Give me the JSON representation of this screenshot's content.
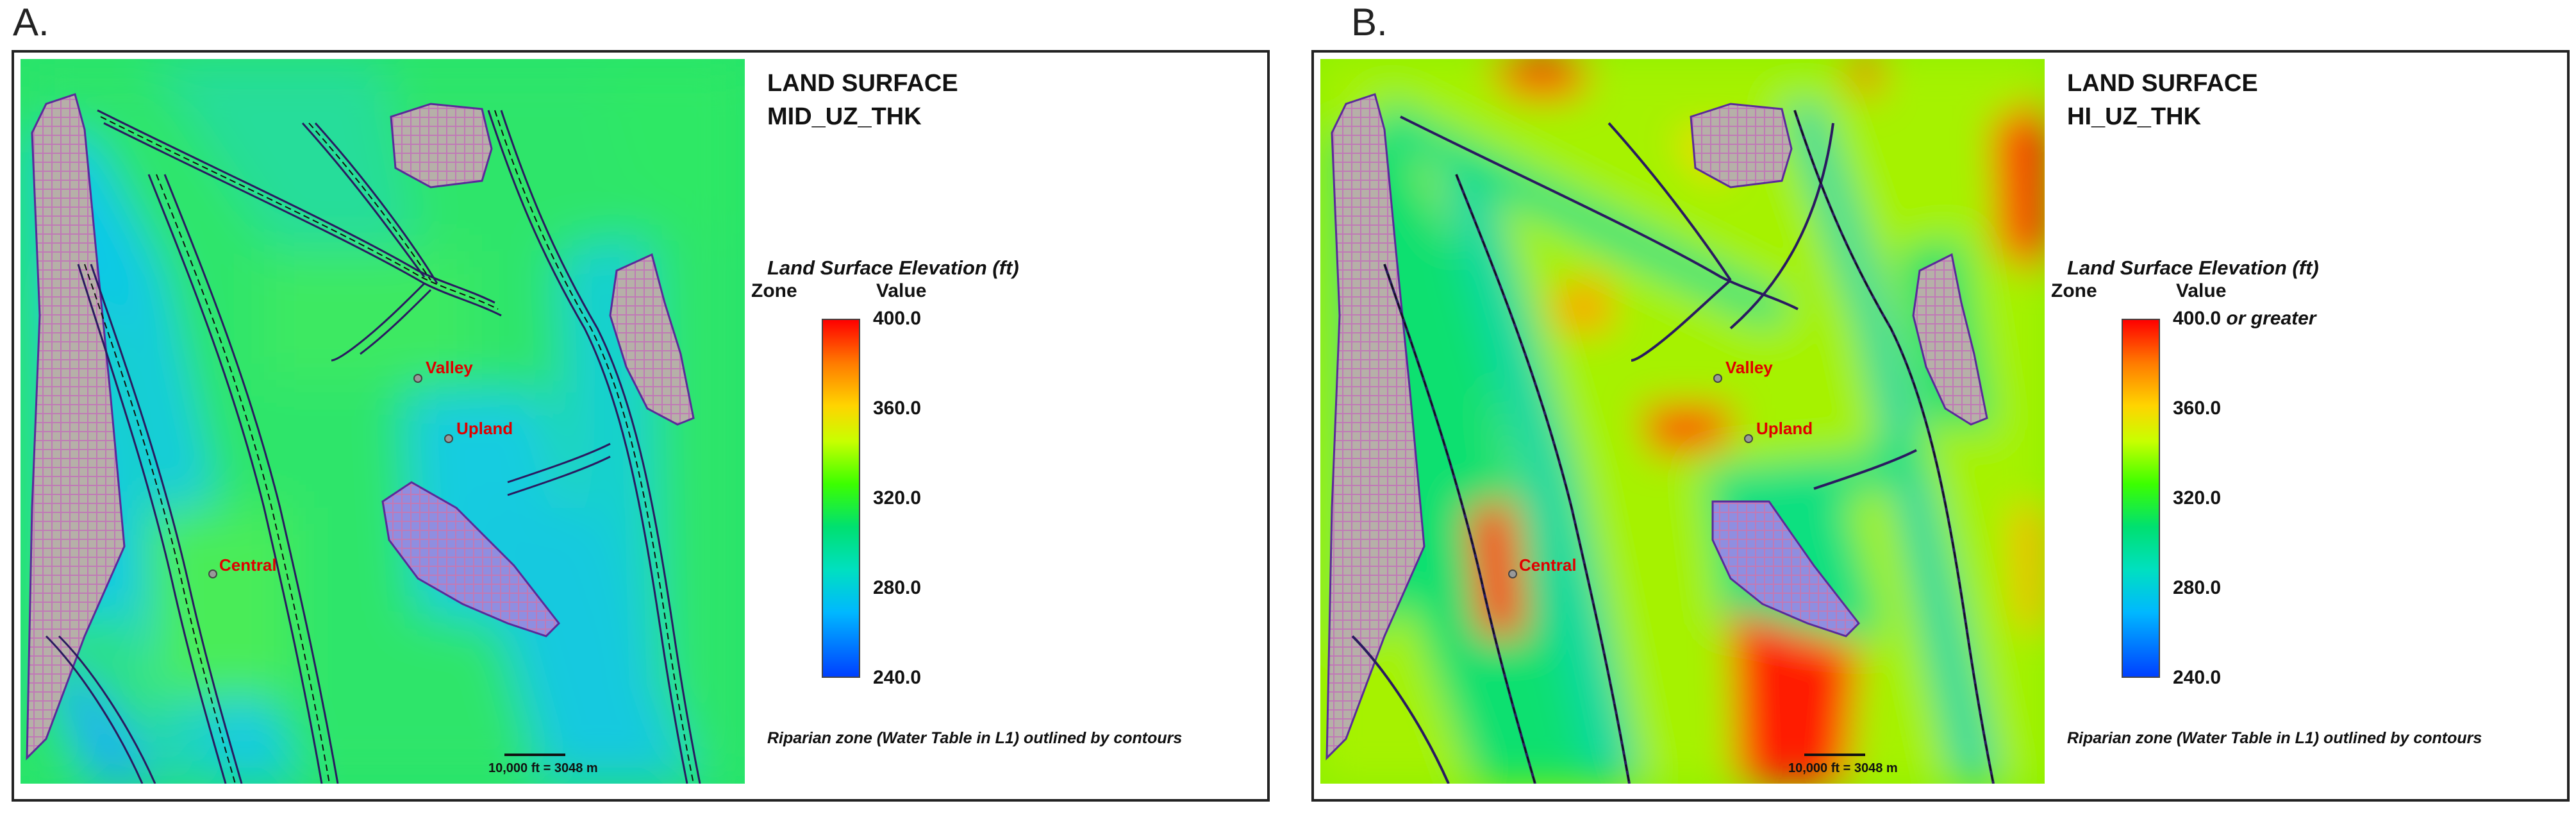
{
  "panels": [
    {
      "letter": "A.",
      "title_line1": "LAND SURFACE",
      "title_line2": "MID_UZ_THK",
      "legend_title": "Land Surface Elevation (ft)",
      "zone_label": "Zone",
      "value_label": "Value",
      "ticks": [
        "400.0",
        "360.0",
        "320.0",
        "280.0",
        "240.0"
      ],
      "top_tick_suffix": "",
      "caption": "Riparian zone (Water Table in L1) outlined by contours",
      "scale_bar": "10,000 ft = 3048 m",
      "sites": {
        "valley": "Valley",
        "upland": "Upland",
        "central": "Central"
      }
    },
    {
      "letter": "B.",
      "title_line1": "LAND SURFACE",
      "title_line2": "HI_UZ_THK",
      "legend_title": "Land Surface Elevation (ft)",
      "zone_label": "Zone",
      "value_label": "Value",
      "ticks": [
        "400.0",
        "360.0",
        "320.0",
        "280.0",
        "240.0"
      ],
      "top_tick_suffix": "or greater",
      "caption": "Riparian zone (Water Table in L1) outlined by contours",
      "scale_bar": "10,000 ft = 3048 m",
      "sites": {
        "valley": "Valley",
        "upland": "Upland",
        "central": "Central"
      }
    }
  ],
  "colors": {
    "ramp": [
      "#ff0000",
      "#ff7a00",
      "#ffd400",
      "#c8ff00",
      "#3cff00",
      "#00e070",
      "#00e0c0",
      "#00b8ff",
      "#0040ff"
    ],
    "riparian_outline": "#4a2a8a",
    "grid_fill": "#b9a3b8",
    "site_label": "#e00000"
  }
}
